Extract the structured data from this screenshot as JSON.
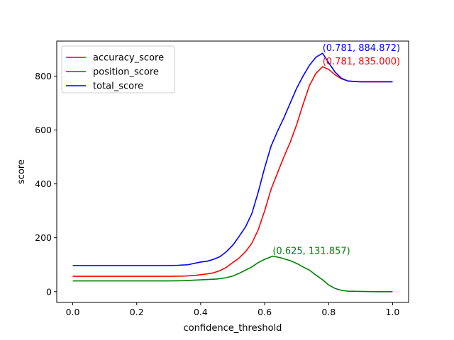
{
  "chart_data": {
    "type": "line",
    "title": "",
    "xlabel": "confidence_threshold",
    "ylabel": "score",
    "xlim": [
      -0.05,
      1.05
    ],
    "ylim": [
      -40,
      930
    ],
    "xticks": [
      0.0,
      0.2,
      0.4,
      0.6,
      0.8,
      1.0
    ],
    "xtick_labels": [
      "0.0",
      "0.2",
      "0.4",
      "0.6",
      "0.8",
      "1.0"
    ],
    "yticks": [
      0,
      200,
      400,
      600,
      800
    ],
    "ytick_labels": [
      "0",
      "200",
      "400",
      "600",
      "800"
    ],
    "grid": false,
    "legend_position": "top-left",
    "series": [
      {
        "name": "accuracy_score",
        "color": "#ff0000",
        "points": [
          [
            0.0,
            57
          ],
          [
            0.1,
            57
          ],
          [
            0.2,
            57
          ],
          [
            0.3,
            57
          ],
          [
            0.35,
            58
          ],
          [
            0.38,
            60
          ],
          [
            0.4,
            63
          ],
          [
            0.42,
            66
          ],
          [
            0.44,
            70
          ],
          [
            0.46,
            78
          ],
          [
            0.48,
            90
          ],
          [
            0.5,
            108
          ],
          [
            0.52,
            125
          ],
          [
            0.54,
            148
          ],
          [
            0.56,
            180
          ],
          [
            0.58,
            230
          ],
          [
            0.6,
            300
          ],
          [
            0.62,
            380
          ],
          [
            0.64,
            440
          ],
          [
            0.66,
            500
          ],
          [
            0.68,
            555
          ],
          [
            0.7,
            620
          ],
          [
            0.72,
            695
          ],
          [
            0.74,
            765
          ],
          [
            0.76,
            810
          ],
          [
            0.781,
            835
          ],
          [
            0.8,
            825
          ],
          [
            0.82,
            805
          ],
          [
            0.84,
            790
          ],
          [
            0.86,
            782
          ],
          [
            0.88,
            780
          ],
          [
            0.9,
            779
          ],
          [
            0.95,
            779
          ],
          [
            1.0,
            779
          ]
        ]
      },
      {
        "name": "position_score",
        "color": "#008000",
        "points": [
          [
            0.0,
            40
          ],
          [
            0.1,
            40
          ],
          [
            0.2,
            40
          ],
          [
            0.3,
            40
          ],
          [
            0.35,
            41
          ],
          [
            0.4,
            44
          ],
          [
            0.45,
            47
          ],
          [
            0.48,
            52
          ],
          [
            0.5,
            58
          ],
          [
            0.52,
            68
          ],
          [
            0.54,
            80
          ],
          [
            0.56,
            92
          ],
          [
            0.58,
            108
          ],
          [
            0.6,
            120
          ],
          [
            0.625,
            131.857
          ],
          [
            0.65,
            126
          ],
          [
            0.68,
            115
          ],
          [
            0.7,
            105
          ],
          [
            0.72,
            92
          ],
          [
            0.74,
            80
          ],
          [
            0.76,
            62
          ],
          [
            0.78,
            45
          ],
          [
            0.8,
            25
          ],
          [
            0.82,
            12
          ],
          [
            0.84,
            5
          ],
          [
            0.86,
            2
          ],
          [
            0.9,
            1
          ],
          [
            0.95,
            0
          ],
          [
            1.0,
            0
          ]
        ]
      },
      {
        "name": "total_score",
        "color": "#0000ff",
        "points": [
          [
            0.0,
            97
          ],
          [
            0.1,
            97
          ],
          [
            0.2,
            97
          ],
          [
            0.3,
            97
          ],
          [
            0.33,
            98
          ],
          [
            0.36,
            100
          ],
          [
            0.38,
            105
          ],
          [
            0.4,
            110
          ],
          [
            0.42,
            113
          ],
          [
            0.44,
            120
          ],
          [
            0.46,
            130
          ],
          [
            0.48,
            148
          ],
          [
            0.5,
            172
          ],
          [
            0.52,
            205
          ],
          [
            0.54,
            240
          ],
          [
            0.56,
            290
          ],
          [
            0.58,
            370
          ],
          [
            0.6,
            460
          ],
          [
            0.62,
            540
          ],
          [
            0.64,
            595
          ],
          [
            0.66,
            645
          ],
          [
            0.68,
            700
          ],
          [
            0.7,
            755
          ],
          [
            0.72,
            800
          ],
          [
            0.74,
            840
          ],
          [
            0.76,
            870
          ],
          [
            0.781,
            884.872
          ],
          [
            0.8,
            850
          ],
          [
            0.82,
            815
          ],
          [
            0.84,
            792
          ],
          [
            0.86,
            782
          ],
          [
            0.88,
            780
          ],
          [
            0.9,
            779
          ],
          [
            0.95,
            779
          ],
          [
            1.0,
            779
          ]
        ]
      }
    ],
    "annotations": [
      {
        "text": "(0.781, 884.872)",
        "x": 0.781,
        "y": 884.872,
        "color": "#0000ff"
      },
      {
        "text": "(0.781, 835.000)",
        "x": 0.781,
        "y": 835.0,
        "color": "#ff0000"
      },
      {
        "text": "(0.625, 131.857)",
        "x": 0.625,
        "y": 131.857,
        "color": "#008000"
      }
    ]
  }
}
